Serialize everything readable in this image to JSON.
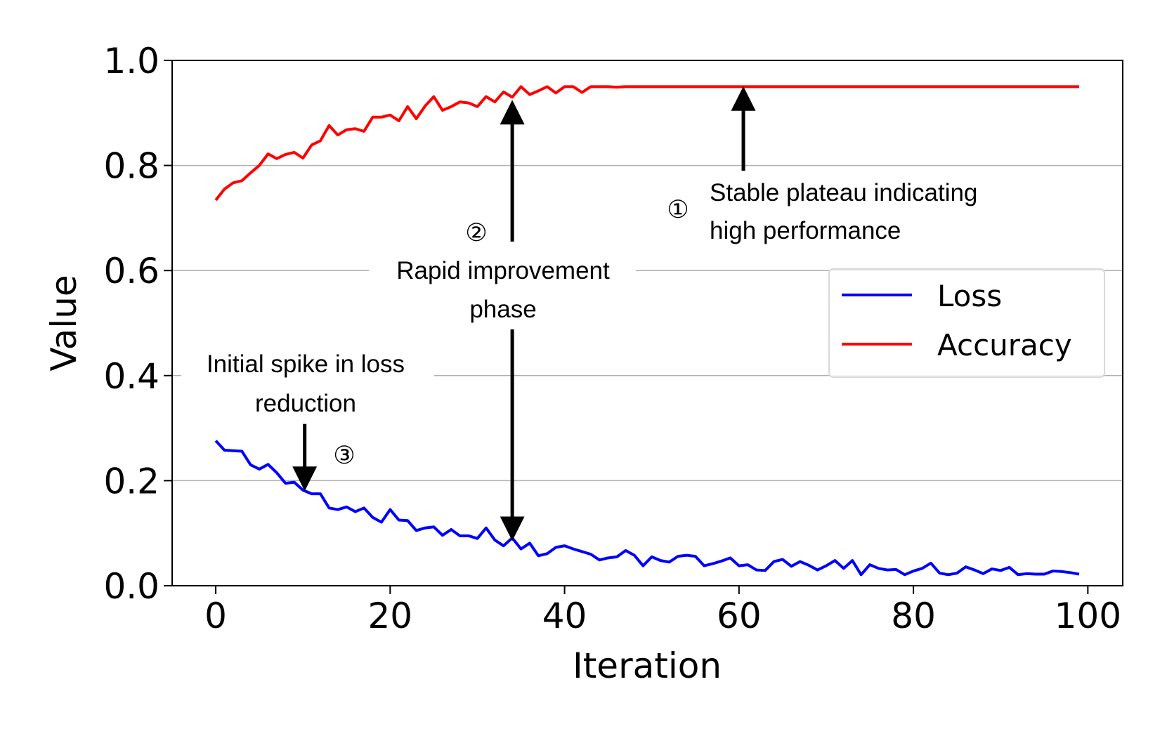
{
  "chart_data": {
    "type": "line",
    "title": "",
    "xlabel": "Iteration",
    "ylabel": "Value",
    "xlim": [
      -5,
      104
    ],
    "ylim": [
      0.0,
      1.0
    ],
    "xticks": [
      0,
      20,
      40,
      60,
      80,
      100
    ],
    "xtick_labels": [
      "0",
      "20",
      "40",
      "60",
      "80",
      "100"
    ],
    "yticks": [
      0.0,
      0.2,
      0.4,
      0.6,
      0.8,
      1.0
    ],
    "ytick_labels": [
      "0.0",
      "0.2",
      "0.4",
      "0.6",
      "0.8",
      "1.0"
    ],
    "grid": "horizontal",
    "legend_position": "center-right",
    "series": [
      {
        "name": "Loss",
        "color": "#0000ff",
        "x": [
          0,
          1,
          2,
          3,
          4,
          5,
          6,
          7,
          8,
          9,
          10,
          11,
          12,
          13,
          14,
          15,
          16,
          17,
          18,
          19,
          20,
          21,
          22,
          23,
          24,
          25,
          26,
          27,
          28,
          29,
          30,
          31,
          32,
          33,
          34,
          35,
          36,
          37,
          38,
          39,
          40,
          41,
          42,
          43,
          44,
          45,
          46,
          47,
          48,
          49,
          50,
          51,
          52,
          53,
          54,
          55,
          56,
          57,
          58,
          59,
          60,
          61,
          62,
          63,
          64,
          65,
          66,
          67,
          68,
          69,
          70,
          71,
          72,
          73,
          74,
          75,
          76,
          77,
          78,
          79,
          80,
          81,
          82,
          83,
          84,
          85,
          86,
          87,
          88,
          89,
          90,
          91,
          92,
          93,
          94,
          95,
          96,
          97,
          98,
          99
        ],
        "values": [
          0.276,
          0.258,
          0.257,
          0.256,
          0.23,
          0.222,
          0.231,
          0.215,
          0.195,
          0.197,
          0.182,
          0.175,
          0.175,
          0.148,
          0.145,
          0.15,
          0.141,
          0.148,
          0.13,
          0.121,
          0.145,
          0.125,
          0.124,
          0.105,
          0.11,
          0.112,
          0.096,
          0.107,
          0.095,
          0.095,
          0.09,
          0.11,
          0.087,
          0.076,
          0.091,
          0.07,
          0.081,
          0.057,
          0.061,
          0.073,
          0.076,
          0.07,
          0.065,
          0.06,
          0.049,
          0.053,
          0.055,
          0.067,
          0.058,
          0.038,
          0.055,
          0.048,
          0.045,
          0.056,
          0.058,
          0.056,
          0.038,
          0.042,
          0.047,
          0.053,
          0.038,
          0.04,
          0.03,
          0.029,
          0.046,
          0.05,
          0.037,
          0.046,
          0.039,
          0.03,
          0.038,
          0.048,
          0.033,
          0.048,
          0.021,
          0.04,
          0.033,
          0.03,
          0.031,
          0.021,
          0.028,
          0.033,
          0.043,
          0.024,
          0.021,
          0.024,
          0.036,
          0.03,
          0.023,
          0.032,
          0.029,
          0.035,
          0.021,
          0.023,
          0.022,
          0.022,
          0.028,
          0.027,
          0.025,
          0.022
        ]
      },
      {
        "name": "Accuracy",
        "color": "#ff0000",
        "x": [
          0,
          1,
          2,
          3,
          4,
          5,
          6,
          7,
          8,
          9,
          10,
          11,
          12,
          13,
          14,
          15,
          16,
          17,
          18,
          19,
          20,
          21,
          22,
          23,
          24,
          25,
          26,
          27,
          28,
          29,
          30,
          31,
          32,
          33,
          34,
          35,
          36,
          37,
          38,
          39,
          40,
          41,
          42,
          43,
          44,
          45,
          46,
          47,
          48,
          49,
          50,
          51,
          52,
          53,
          54,
          55,
          56,
          57,
          58,
          59,
          60,
          61,
          62,
          63,
          64,
          65,
          66,
          67,
          68,
          69,
          70,
          71,
          72,
          73,
          74,
          75,
          76,
          77,
          78,
          79,
          80,
          81,
          82,
          83,
          84,
          85,
          86,
          87,
          88,
          89,
          90,
          91,
          92,
          93,
          94,
          95,
          96,
          97,
          98,
          99
        ],
        "values": [
          0.734,
          0.755,
          0.767,
          0.771,
          0.786,
          0.8,
          0.822,
          0.813,
          0.821,
          0.825,
          0.814,
          0.839,
          0.847,
          0.876,
          0.858,
          0.868,
          0.87,
          0.865,
          0.892,
          0.892,
          0.896,
          0.885,
          0.912,
          0.889,
          0.913,
          0.931,
          0.905,
          0.912,
          0.921,
          0.919,
          0.912,
          0.931,
          0.921,
          0.94,
          0.93,
          0.95,
          0.935,
          0.942,
          0.95,
          0.938,
          0.95,
          0.95,
          0.939,
          0.95,
          0.95,
          0.95,
          0.949,
          0.95,
          0.95,
          0.95,
          0.95,
          0.95,
          0.95,
          0.95,
          0.95,
          0.95,
          0.95,
          0.95,
          0.95,
          0.95,
          0.95,
          0.95,
          0.95,
          0.95,
          0.95,
          0.95,
          0.95,
          0.95,
          0.95,
          0.95,
          0.95,
          0.95,
          0.95,
          0.95,
          0.95,
          0.95,
          0.95,
          0.95,
          0.95,
          0.95,
          0.95,
          0.95,
          0.95,
          0.95,
          0.95,
          0.95,
          0.95,
          0.95,
          0.95,
          0.95,
          0.95,
          0.95,
          0.95,
          0.95,
          0.95,
          0.95,
          0.95,
          0.95,
          0.95,
          0.95
        ]
      }
    ],
    "annotations": [
      {
        "id": "stable",
        "marker": "①",
        "lines": [
          "Stable plateau indicating",
          "high performance"
        ],
        "arrow_tail": [
          60.5,
          0.79
        ],
        "arrow_head": [
          60.5,
          0.943
        ]
      },
      {
        "id": "rapid",
        "marker": "②",
        "lines": [
          "Rapid improvement",
          "phase"
        ],
        "arrow_up_tail": [
          34,
          0.655
        ],
        "arrow_up_head": [
          34,
          0.917
        ],
        "arrow_down_tail": [
          34,
          0.488
        ],
        "arrow_down_head": [
          34,
          0.093
        ]
      },
      {
        "id": "initial",
        "marker": "③",
        "lines": [
          "Initial spike in loss",
          "reduction"
        ],
        "arrow_tail": [
          10.2,
          0.308
        ],
        "arrow_head": [
          10.2,
          0.188
        ]
      }
    ]
  }
}
